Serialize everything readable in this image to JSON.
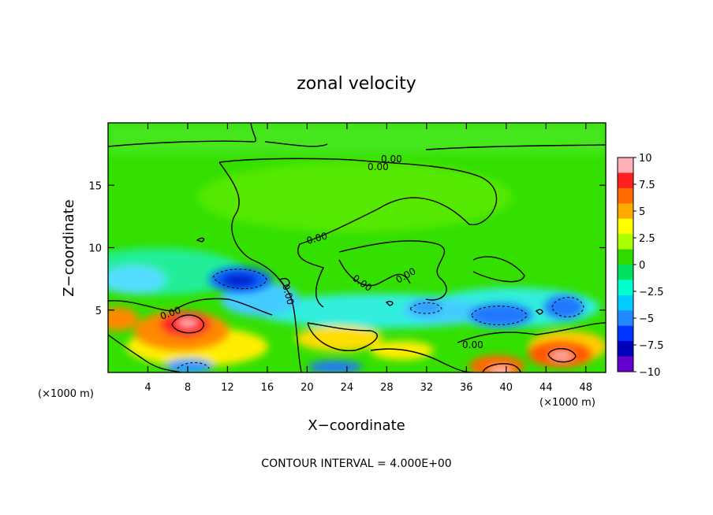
{
  "chart_data": {
    "type": "heatmap",
    "title": "zonal velocity",
    "xlabel": "X−coordinate",
    "ylabel": "Z−coordinate",
    "x_unit": "(×1000 m)",
    "y_unit": "(×1000 m)",
    "x_ticks": [
      4,
      8,
      12,
      16,
      20,
      24,
      28,
      32,
      36,
      40,
      44,
      48
    ],
    "y_ticks": [
      5,
      10,
      15
    ],
    "xlim": [
      0,
      50
    ],
    "ylim": [
      0,
      20
    ],
    "colorbar": {
      "ticks": [
        "10",
        "7.5",
        "5",
        "2.5",
        "0",
        "−2.5",
        "−5",
        "−7.5",
        "−10"
      ],
      "colors": [
        "#ffb0b8",
        "#ff2020",
        "#ff6a00",
        "#ffaa00",
        "#ffff00",
        "#aaff00",
        "#2eda00",
        "#00e060",
        "#00ffcc",
        "#00ccff",
        "#2288ff",
        "#0033ff",
        "#0000bb",
        "#6600cc"
      ]
    },
    "contour_interval_text": "CONTOUR INTERVAL = 4.000E+00",
    "contour_labels": [
      "0.00",
      "0.00",
      "0.00",
      "0.00",
      "0.00",
      "0.00",
      "0.00",
      "0.00"
    ],
    "features": [
      {
        "kind": "max",
        "x": 8.5,
        "z": 3.8,
        "value": 9
      },
      {
        "kind": "max",
        "x": 39.5,
        "z": 0.4,
        "value": 10
      },
      {
        "kind": "max",
        "x": 45.5,
        "z": 1.5,
        "value": 9
      },
      {
        "kind": "min",
        "x": 13.5,
        "z": 7.5,
        "value": -7
      },
      {
        "kind": "min",
        "x": 40.5,
        "z": 4.6,
        "value": -6
      },
      {
        "kind": "min",
        "x": 46,
        "z": 5.2,
        "value": -5
      }
    ]
  }
}
